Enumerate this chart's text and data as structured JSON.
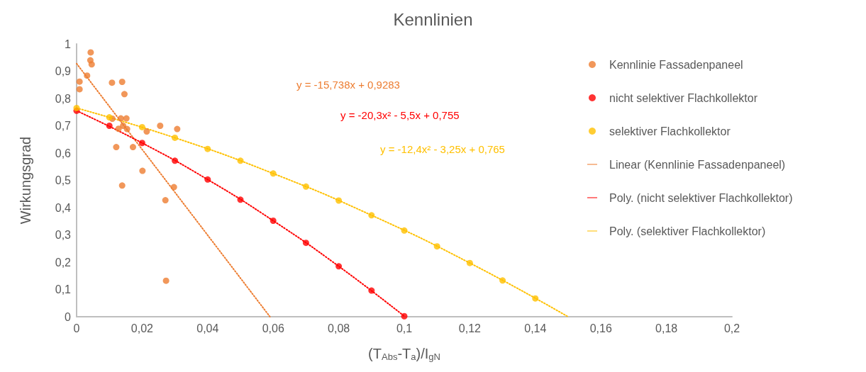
{
  "chart_data": {
    "type": "scatter",
    "title": "Kennlinien",
    "xlabel": "(T$_{Abs}$-T$_{a}$)/I$_{gN}$",
    "ylabel": "Wirkungsgrad",
    "xlim": [
      0,
      0.2
    ],
    "ylim": [
      0,
      1
    ],
    "xticks": [
      0,
      {
        "value": 0.02,
        "label": "0,02"
      },
      {
        "value": 0.04,
        "label": "0,04"
      },
      {
        "value": 0.06,
        "label": "0,06"
      },
      {
        "value": 0.08,
        "label": "0,08"
      },
      {
        "value": 0.1,
        "label": "0,1"
      },
      {
        "value": 0.12,
        "label": "0,12"
      },
      {
        "value": 0.14,
        "label": "0,14"
      },
      {
        "value": 0.16,
        "label": "0,16"
      },
      {
        "value": 0.18,
        "label": "0,18"
      },
      {
        "value": 0.2,
        "label": "0,2"
      }
    ],
    "yticks": [
      0,
      {
        "value": 0.1,
        "label": "0,1"
      },
      {
        "value": 0.2,
        "label": "0,2"
      },
      {
        "value": 0.3,
        "label": "0,3"
      },
      {
        "value": 0.4,
        "label": "0,4"
      },
      {
        "value": 0.5,
        "label": "0,5"
      },
      {
        "value": 0.6,
        "label": "0,6"
      },
      {
        "value": 0.7,
        "label": "0,7"
      },
      {
        "value": 0.8,
        "label": "0,8"
      },
      {
        "value": 0.9,
        "label": "0,9"
      },
      1
    ],
    "grid": false,
    "legend": "right",
    "marker": "circle",
    "series": [
      {
        "name": "Kennlinie Fassadenpaneel",
        "color": "#ed7d31",
        "x": [
          0.0043,
          0.0042,
          0.0046,
          0.0032,
          0.0009,
          0.0009,
          0.0108,
          0.0139,
          0.0146,
          0.0109,
          0.0135,
          0.0152,
          0.0142,
          0.0128,
          0.0154,
          0.0255,
          0.0307,
          0.0214,
          0.0121,
          0.0172,
          0.0201,
          0.0139,
          0.0297,
          0.0271,
          0.0273
        ],
        "values": [
          0.969,
          0.94,
          0.925,
          0.884,
          0.862,
          0.834,
          0.858,
          0.861,
          0.816,
          0.726,
          0.727,
          0.727,
          0.7,
          0.689,
          0.688,
          0.7,
          0.688,
          0.679,
          0.622,
          0.622,
          0.535,
          0.481,
          0.475,
          0.427,
          0.132
        ]
      },
      {
        "name": "nicht selektiver Flachkollektor",
        "color": "#ff0000",
        "x": [
          0,
          0.01,
          0.02,
          0.03,
          0.04,
          0.05,
          0.06,
          0.07,
          0.08,
          0.09,
          0.1
        ],
        "values": [
          0.755,
          0.7,
          0.637,
          0.572,
          0.503,
          0.429,
          0.352,
          0.271,
          0.185,
          0.096,
          0.002
        ]
      },
      {
        "name": "selektiver Flachkollektor",
        "color": "#ffc000",
        "x": [
          0,
          0.01,
          0.02,
          0.03,
          0.04,
          0.05,
          0.06,
          0.07,
          0.08,
          0.09,
          0.1,
          0.11,
          0.12,
          0.13,
          0.14
        ],
        "values": [
          0.765,
          0.731,
          0.695,
          0.656,
          0.615,
          0.572,
          0.525,
          0.477,
          0.426,
          0.372,
          0.316,
          0.258,
          0.197,
          0.133,
          0.067
        ]
      },
      {
        "name": "Linear (Kennlinie Fassadenpaneel)",
        "type": "line",
        "marker": "none",
        "line_style": "dotted",
        "color": "#ed7d31",
        "x": [
          0,
          0.059
        ],
        "values": [
          0.928,
          0
        ]
      },
      {
        "name": "Poly. (nicht selektiver Flachkollektor)",
        "type": "line",
        "marker": "none",
        "line_style": "dotted",
        "color": "#ff0000",
        "x": [
          0,
          0.02,
          0.04,
          0.06,
          0.08,
          0.1
        ],
        "values": [
          0.755,
          0.637,
          0.503,
          0.352,
          0.185,
          0.002
        ]
      },
      {
        "name": "Poly. (selektiver Flachkollektor)",
        "type": "line",
        "marker": "none",
        "line_style": "dotted",
        "color": "#ffc000",
        "x": [
          0,
          0.03,
          0.06,
          0.09,
          0.12,
          0.15
        ],
        "values": [
          0.765,
          0.656,
          0.525,
          0.372,
          0.197,
          0
        ]
      }
    ],
    "annotations": [
      "y = -15,738x + 0,9283",
      "y = -20,3x² - 5,5x + 0,755",
      "y = -12,4x² - 3,25x + 0,765"
    ]
  }
}
